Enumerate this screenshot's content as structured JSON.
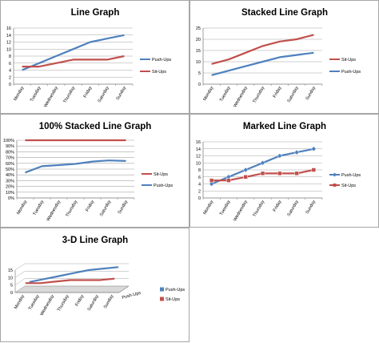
{
  "colors": {
    "pushups": "#4f81bd",
    "situps": "#c0504d",
    "grid": "#a6a6a6",
    "axis": "#868686",
    "floor": "#d9d9d9"
  },
  "chart_data": [
    {
      "type": "line",
      "title": "Line Graph",
      "categories": [
        "Monday",
        "Tuesday",
        "Wednesday",
        "Thursday",
        "Friday",
        "Saturday",
        "Sunday"
      ],
      "series": [
        {
          "name": "Push-Ups",
          "values": [
            4,
            6,
            8,
            10,
            12,
            13,
            14
          ]
        },
        {
          "name": "Sit-Ups",
          "values": [
            5,
            5,
            6,
            7,
            7,
            7,
            8
          ]
        }
      ],
      "ylim": [
        0,
        16
      ],
      "yticks": [
        "0",
        "2",
        "4",
        "6",
        "8",
        "10",
        "12",
        "14",
        "16"
      ],
      "grid": true,
      "legend": "right"
    },
    {
      "type": "line",
      "title": "Stacked Line Graph",
      "categories": [
        "Monday",
        "Tuesday",
        "Wednesday",
        "Thursday",
        "Friday",
        "Saturday",
        "Sunday"
      ],
      "series": [
        {
          "name": "Sit-Ups",
          "values": [
            9,
            11,
            14,
            17,
            19,
            20,
            22
          ]
        },
        {
          "name": "Push-Ups",
          "values": [
            4,
            6,
            8,
            10,
            12,
            13,
            14
          ]
        }
      ],
      "ylim": [
        0,
        25
      ],
      "yticks": [
        "0",
        "5",
        "10",
        "15",
        "20",
        "25"
      ],
      "grid": true,
      "legend": "right"
    },
    {
      "type": "line",
      "title": "100% Stacked Line Graph",
      "categories": [
        "Monday",
        "Tuesday",
        "Wednesday",
        "Thursday",
        "Friday",
        "Saturday",
        "Sunday"
      ],
      "series": [
        {
          "name": "Sit-Ups",
          "values": [
            100,
            100,
            100,
            100,
            100,
            100,
            100
          ]
        },
        {
          "name": "Push-Ups",
          "values": [
            44,
            55,
            57,
            59,
            63,
            65,
            64
          ]
        }
      ],
      "ylim": [
        0,
        100
      ],
      "yticks": [
        "0%",
        "10%",
        "20%",
        "30%",
        "40%",
        "50%",
        "60%",
        "70%",
        "80%",
        "90%",
        "100%"
      ],
      "grid": true,
      "legend": "right"
    },
    {
      "type": "line",
      "title": "Marked Line Graph",
      "categories": [
        "Monday",
        "Tuesday",
        "Wednesday",
        "Thursday",
        "Friday",
        "Saturday",
        "Sunday"
      ],
      "series": [
        {
          "name": "Push-Ups",
          "values": [
            4,
            6,
            8,
            10,
            12,
            13,
            14
          ],
          "marker": "diamond"
        },
        {
          "name": "Sit-Ups",
          "values": [
            5,
            5,
            6,
            7,
            7,
            7,
            8
          ],
          "marker": "square"
        }
      ],
      "ylim": [
        0,
        16
      ],
      "yticks": [
        "0",
        "2",
        "4",
        "6",
        "8",
        "10",
        "12",
        "14",
        "16"
      ],
      "grid": true,
      "legend": "right"
    },
    {
      "type": "line",
      "title": "3-D Line Graph",
      "categories": [
        "Monday",
        "Tuesday",
        "Wednesday",
        "Thursday",
        "Friday",
        "Saturday",
        "Sunday"
      ],
      "series": [
        {
          "name": "Push-Ups",
          "values": [
            4,
            6,
            8,
            10,
            12,
            13,
            14
          ]
        },
        {
          "name": "Sit-Ups",
          "values": [
            5,
            5,
            6,
            7,
            7,
            7,
            8
          ]
        }
      ],
      "depth_axis_label": "Push-Ups",
      "ylim": [
        0,
        15
      ],
      "yticks": [
        "0",
        "5",
        "10",
        "15"
      ],
      "grid": true,
      "legend": "right"
    }
  ]
}
